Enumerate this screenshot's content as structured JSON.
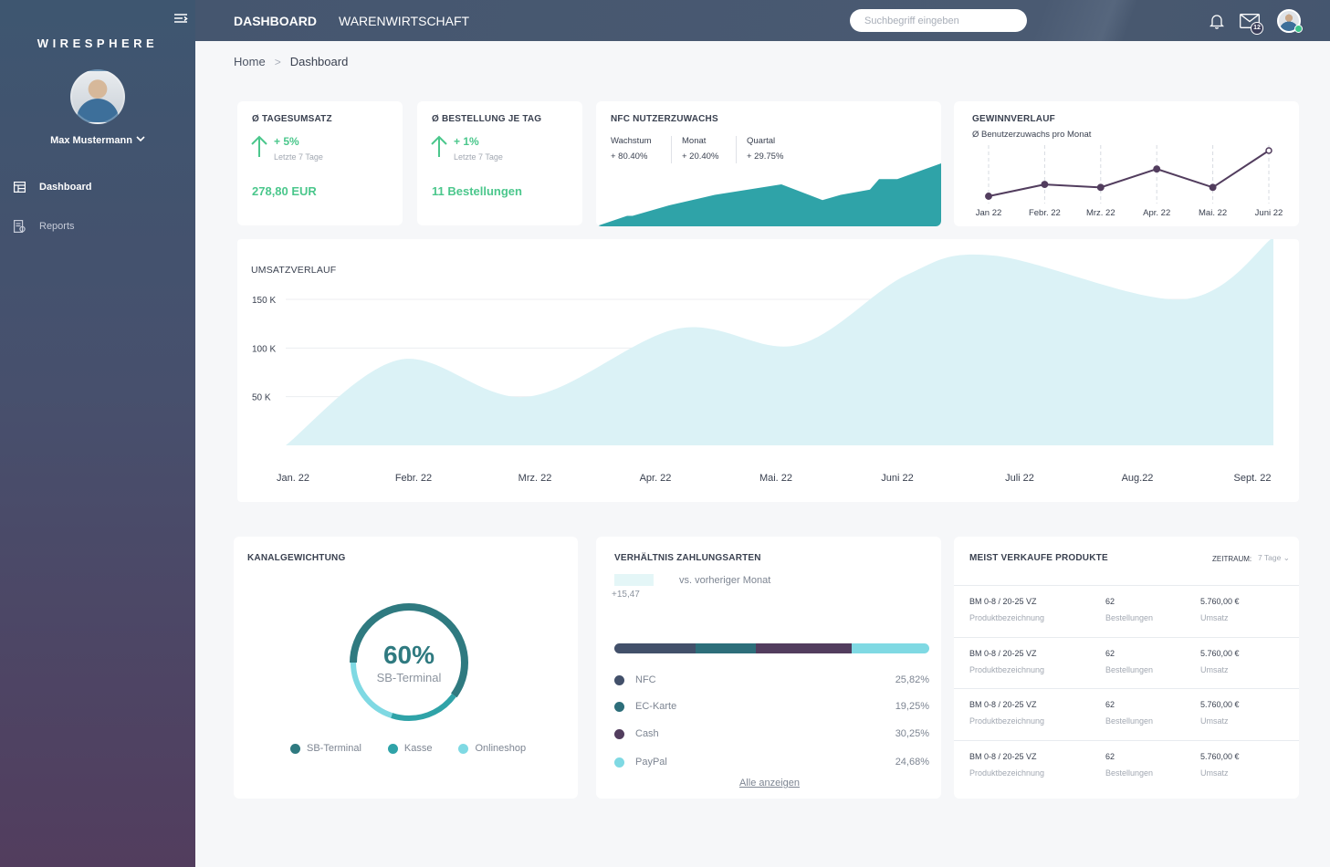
{
  "brand": "WIRESPHERE",
  "user": {
    "name": "Max Mustermann"
  },
  "sidebar": {
    "items": [
      {
        "label": "Dashboard"
      },
      {
        "label": "Reports"
      }
    ]
  },
  "topbar": {
    "tabs": [
      {
        "label": "DASHBOARD"
      },
      {
        "label": "WARENWIRTSCHAFT"
      }
    ],
    "search_placeholder": "Suchbegriff eingeben",
    "mail_count": "12"
  },
  "breadcrumb": {
    "home": "Home",
    "sep": ">",
    "current": "Dashboard"
  },
  "kpis": [
    {
      "title": "Ø TAGESUMSATZ",
      "change": "+ 5%",
      "period": "Letzte 7 Tage",
      "value": "278,80 EUR"
    },
    {
      "title": "Ø BESTELLUNG JE TAG",
      "change": "+ 1%",
      "period": "Letzte 7 Tage",
      "value": "11 Bestellungen"
    }
  ],
  "nfc": {
    "title": "NFC NUTZERZUWACHS",
    "stats": [
      {
        "label": "Wachstum",
        "value": "+ 80.40%"
      },
      {
        "label": "Monat",
        "value": "+ 20.40%"
      },
      {
        "label": "Quartal",
        "value": "+ 29.75%"
      }
    ],
    "color": "#2fa3a8"
  },
  "gewinn": {
    "title": "GEWINNVERLAUF",
    "subtitle": "Ø Benutzerzuwachs pro Monat",
    "months": [
      "Jan 22",
      "Febr. 22",
      "Mrz. 22",
      "Apr. 22",
      "Mai. 22",
      "Juni 22"
    ],
    "values": [
      1.0,
      2.6,
      2.2,
      4.7,
      2.2,
      7.2
    ],
    "color": "#523d5e"
  },
  "umsatz": {
    "title": "UMSATZVERLAUF",
    "y_ticks": [
      "150 K",
      "100 K",
      "50 K"
    ],
    "months": [
      "Jan. 22",
      "Febr. 22",
      "Mrz. 22",
      "Apr. 22",
      "Mai. 22",
      "Juni 22",
      "Juli 22",
      "Aug.22",
      "Sept. 22"
    ],
    "fill": "#dbf2f6"
  },
  "chart_data": [
    {
      "type": "area",
      "title": "UMSATZVERLAUF",
      "x": [
        "Jan. 22",
        "Febr. 22",
        "Mrz. 22",
        "Apr. 22",
        "Mai. 22",
        "Juni 22",
        "Juli 22",
        "Aug.22",
        "Sept. 22"
      ],
      "values": [
        0,
        88000,
        50000,
        120000,
        103000,
        175000,
        195000,
        150000,
        214000
      ],
      "yticks": [
        50000,
        100000,
        150000
      ],
      "grid": true
    },
    {
      "type": "line",
      "title": "GEWINNVERLAUF",
      "x": [
        "Jan 22",
        "Febr. 22",
        "Mrz. 22",
        "Apr. 22",
        "Mai. 22",
        "Juni 22"
      ],
      "values": [
        1.0,
        2.6,
        2.2,
        4.7,
        2.2,
        7.2
      ]
    },
    {
      "type": "area",
      "title": "NFC NUTZERZUWACHS",
      "values": [
        0,
        2,
        2,
        4,
        6,
        8,
        5,
        6,
        7,
        9,
        9,
        12
      ]
    },
    {
      "type": "pie",
      "title": "KANALGEWICHTUNG",
      "categories": [
        "SB-Terminal",
        "Kasse",
        "Onlineshop"
      ],
      "values": [
        60,
        20,
        20
      ]
    },
    {
      "type": "bar",
      "title": "VERHÄLTNIS ZAHLUNGSARTEN",
      "categories": [
        "NFC",
        "EC-Karte",
        "Cash",
        "PayPal"
      ],
      "values": [
        25.82,
        19.25,
        30.25,
        24.68
      ]
    }
  ],
  "kanal": {
    "title": "KANALGEWICHTUNG",
    "center_pct": "60%",
    "center_label": "SB-Terminal",
    "legend": [
      {
        "label": "SB-Terminal",
        "color": "#2f7a80",
        "share": 0.6
      },
      {
        "label": "Kasse",
        "color": "#2fa3a8",
        "share": 0.2
      },
      {
        "label": "Onlineshop",
        "color": "#7fd9e3",
        "share": 0.2
      }
    ]
  },
  "zahlung": {
    "title": "VERHÄLTNIS ZAHLUNGSARTEN",
    "compare": "vs. vorheriger Monat",
    "change": "+15,47",
    "rows": [
      {
        "label": "NFC",
        "value": "25,82%",
        "color": "#42506a",
        "share": 0.2582
      },
      {
        "label": "EC-Karte",
        "value": "19,25%",
        "color": "#2d6e7a",
        "share": 0.1925
      },
      {
        "label": "Cash",
        "value": "30,25%",
        "color": "#523d5e",
        "share": 0.3025
      },
      {
        "label": "PayPal",
        "value": "24,68%",
        "color": "#7fd9e3",
        "share": 0.2468
      }
    ],
    "link": "Alle anzeigen"
  },
  "produkte": {
    "title": "MEIST VERKAUFE PRODUKTE",
    "zeitraum_label": "ZEITRAUM:",
    "zeitraum_value": "7 Tage",
    "rows": [
      {
        "name": "BM 0-8 / 20-25 VZ",
        "name_sub": "Produktbezeichnung",
        "orders": "62",
        "orders_sub": "Bestellungen",
        "revenue": "5.760,00 €",
        "revenue_sub": "Umsatz"
      },
      {
        "name": "BM 0-8 / 20-25 VZ",
        "name_sub": "Produktbezeichnung",
        "orders": "62",
        "orders_sub": "Bestellungen",
        "revenue": "5.760,00 €",
        "revenue_sub": "Umsatz"
      },
      {
        "name": "BM 0-8 / 20-25 VZ",
        "name_sub": "Produktbezeichnung",
        "orders": "62",
        "orders_sub": "Bestellungen",
        "revenue": "5.760,00 €",
        "revenue_sub": "Umsatz"
      },
      {
        "name": "BM 0-8 / 20-25 VZ",
        "name_sub": "Produktbezeichnung",
        "orders": "62",
        "orders_sub": "Bestellungen",
        "revenue": "5.760,00 €",
        "revenue_sub": "Umsatz"
      }
    ]
  }
}
